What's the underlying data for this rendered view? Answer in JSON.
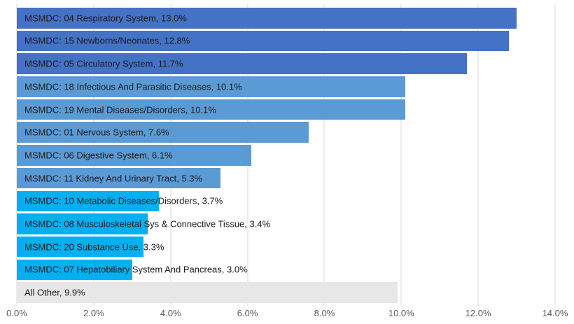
{
  "chart_data": {
    "type": "bar",
    "orientation": "horizontal",
    "title": "",
    "xlabel": "",
    "ylabel": "",
    "xlim": [
      0,
      14
    ],
    "grid": true,
    "legend": "none",
    "gridline_color": "#D9D9D9",
    "background_color": "#FFFFFF",
    "label_text_color": "#1a1a1a",
    "axis_text_color": "#595959",
    "palette": {
      "dark_blue": "#4472C4",
      "medium_blue": "#5B9BD5",
      "cyan": "#00B0F0",
      "gray": "#E7E7E7"
    },
    "x_ticks": [
      {
        "value": 0,
        "label": "0.0%"
      },
      {
        "value": 2,
        "label": "2.0%"
      },
      {
        "value": 4,
        "label": "4.0%"
      },
      {
        "value": 6,
        "label": "6.0%"
      },
      {
        "value": 8,
        "label": "8.0%"
      },
      {
        "value": 10,
        "label": "10.0%"
      },
      {
        "value": 12,
        "label": "12.0%"
      },
      {
        "value": 14,
        "label": "14.0%"
      }
    ],
    "categories": [
      "MSMDC: 04 Respiratory System",
      "MSMDC: 15 Newborns/Neonates",
      "MSMDC: 05 Circulatory System",
      "MSMDC: 18 Infectious And Parasitic Diseases",
      "MSMDC: 19 Mental Diseases/Disorders",
      "MSMDC: 01 Nervous System",
      "MSMDC: 06 Digestive System",
      "MSMDC: 11 Kidney And Urinary Tract",
      "MSMDC: 10 Metabolic Diseases/Disorders",
      "MSMDC: 08 Musculoskeletal Sys & Connective Tissue",
      "MSMDC: 20 Substance Use",
      "MSMDC: 07 Hepatobiliary System And Pancreas",
      "All Other"
    ],
    "values": [
      13.0,
      12.8,
      11.7,
      10.1,
      10.1,
      7.6,
      6.1,
      5.3,
      3.7,
      3.4,
      3.3,
      3.0,
      9.9
    ],
    "bars": [
      {
        "category": "MSMDC: 04 Respiratory System",
        "value": 13.0,
        "label": "MSMDC: 04 Respiratory System, 13.0%",
        "color": "#4472C4"
      },
      {
        "category": "MSMDC: 15 Newborns/Neonates",
        "value": 12.8,
        "label": "MSMDC: 15 Newborns/Neonates, 12.8%",
        "color": "#4472C4"
      },
      {
        "category": "MSMDC: 05 Circulatory System",
        "value": 11.7,
        "label": "MSMDC: 05 Circulatory System, 11.7%",
        "color": "#4472C4"
      },
      {
        "category": "MSMDC: 18 Infectious And Parasitic Diseases",
        "value": 10.1,
        "label": "MSMDC: 18 Infectious And Parasitic Diseases, 10.1%",
        "color": "#5B9BD5"
      },
      {
        "category": "MSMDC: 19 Mental Diseases/Disorders",
        "value": 10.1,
        "label": "MSMDC: 19 Mental Diseases/Disorders, 10.1%",
        "color": "#5B9BD5"
      },
      {
        "category": "MSMDC: 01 Nervous System",
        "value": 7.6,
        "label": "MSMDC: 01 Nervous System, 7.6%",
        "color": "#5B9BD5"
      },
      {
        "category": "MSMDC: 06 Digestive System",
        "value": 6.1,
        "label": "MSMDC: 06 Digestive System, 6.1%",
        "color": "#5B9BD5"
      },
      {
        "category": "MSMDC: 11 Kidney And Urinary Tract",
        "value": 5.3,
        "label": "MSMDC: 11 Kidney And Urinary Tract, 5.3%",
        "color": "#5B9BD5"
      },
      {
        "category": "MSMDC: 10 Metabolic Diseases/Disorders",
        "value": 3.7,
        "label": "MSMDC: 10 Metabolic Diseases/Disorders, 3.7%",
        "color": "#00B0F0"
      },
      {
        "category": "MSMDC: 08 Musculoskeletal Sys & Connective Tissue",
        "value": 3.4,
        "label": "MSMDC: 08 Musculoskeletal Sys & Connective Tissue, 3.4%",
        "color": "#00B0F0"
      },
      {
        "category": "MSMDC: 20 Substance Use",
        "value": 3.3,
        "label": "MSMDC: 20 Substance Use, 3.3%",
        "color": "#00B0F0"
      },
      {
        "category": "MSMDC: 07 Hepatobiliary System And Pancreas",
        "value": 3.0,
        "label": "MSMDC: 07 Hepatobiliary System And Pancreas, 3.0%",
        "color": "#00B0F0"
      },
      {
        "category": "All Other",
        "value": 9.9,
        "label": "All Other, 9.9%",
        "color": "#E7E7E7"
      }
    ]
  }
}
